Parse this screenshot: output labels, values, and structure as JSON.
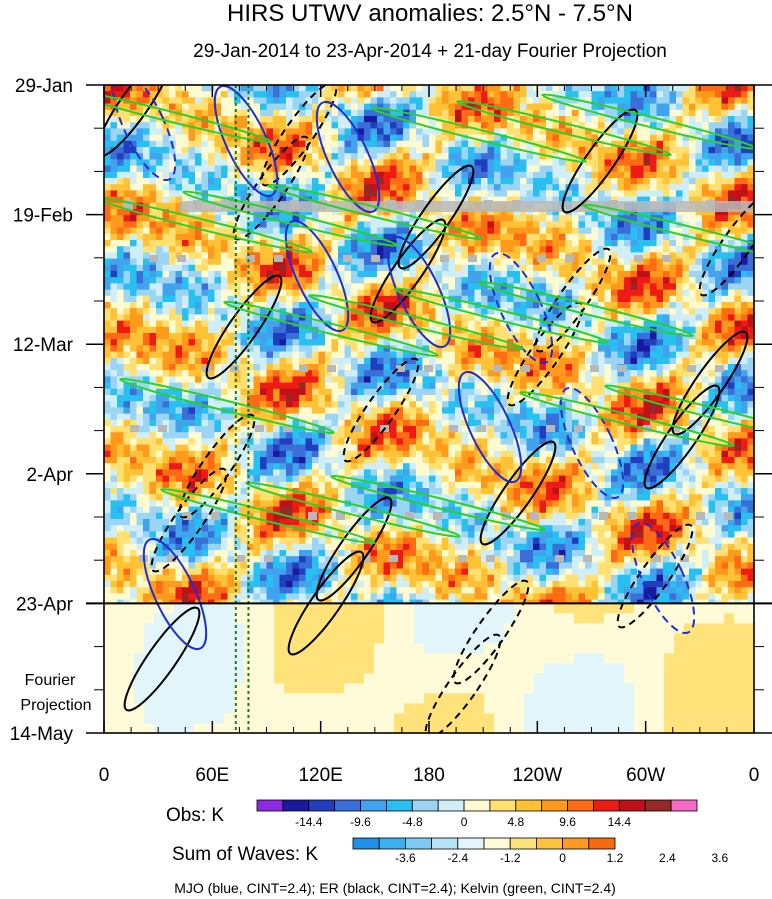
{
  "chart_data": {
    "type": "heatmap",
    "title": "HIRS UTWV anomalies: 2.5°N - 7.5°N",
    "subtitle": "29-Jan-2014 to 23-Apr-2014 + 21-day Fourier Projection",
    "x_tick_labels": [
      "0",
      "60E",
      "120E",
      "180",
      "120W",
      "60W",
      "0"
    ],
    "x_tick_degrees_east": [
      0,
      60,
      120,
      180,
      240,
      300,
      360
    ],
    "xlim": [
      0,
      360
    ],
    "y_tick_labels": [
      "29-Jan",
      "19-Feb",
      "12-Mar",
      "2-Apr",
      "23-Apr",
      "14-May"
    ],
    "y_tick_days": [
      0,
      21,
      42,
      63,
      84,
      105
    ],
    "ylim_days": [
      0,
      105
    ],
    "observation_end_day": 84,
    "projection_label_line1": "Fourier",
    "projection_label_line2": "Projection",
    "dotted_meridians_deg": [
      73,
      80
    ],
    "obs_colorbar": {
      "label": "Obs: K",
      "tick_labels": [
        "-14.4",
        "-9.6",
        "-4.8",
        "0",
        "4.8",
        "9.6",
        "14.4"
      ],
      "colors": [
        "#8a2be2",
        "#1a1aa0",
        "#1f3fbf",
        "#3a6fd8",
        "#41a3ee",
        "#27c0f0",
        "#9cd4f4",
        "#cfeef8",
        "#fffbd0",
        "#ffe070",
        "#ffc235",
        "#ff9a1c",
        "#ff6a14",
        "#ee1a14",
        "#c01018",
        "#962828",
        "#f36ac8"
      ]
    },
    "waves_colorbar": {
      "label": "Sum of Waves: K",
      "tick_labels": [
        "-3.6",
        "-2.4",
        "-1.2",
        "0",
        "1.2",
        "2.4",
        "3.6"
      ],
      "colors": [
        "#1f8fe8",
        "#3ab0ef",
        "#7ccbf4",
        "#b7e3f8",
        "#e2f5fb",
        "#fffbd8",
        "#ffe37a",
        "#ffc240",
        "#ff9a20",
        "#f66a10"
      ]
    },
    "footnote": "MJO (blue, CINT=2.4); ER (black, CINT=2.4); Kelvin (green, CINT=2.4)",
    "series": [
      {
        "name": "MJO",
        "color": "#1f2fd0",
        "cint": 2.4
      },
      {
        "name": "ER",
        "color": "#000000",
        "cint": 2.4
      },
      {
        "name": "Kelvin",
        "color": "#2bd12b",
        "cint": 2.4
      }
    ]
  }
}
